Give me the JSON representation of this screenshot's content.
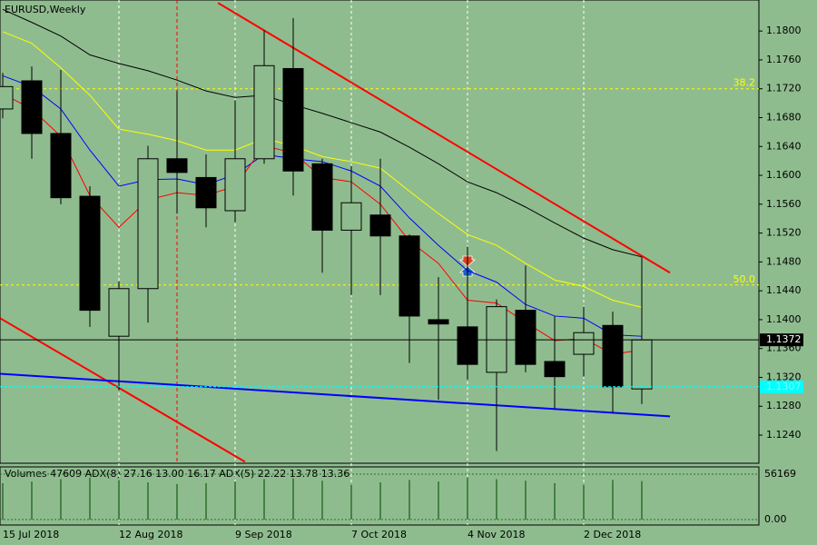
{
  "chart_data": {
    "type": "candlestick",
    "title": "EURUSD,Weekly",
    "categories": [
      "15 Jul 2018",
      null,
      null,
      null,
      "12 Aug 2018",
      null,
      null,
      null,
      "9 Sep 2018",
      null,
      null,
      null,
      "7 Oct 2018",
      null,
      null,
      null,
      "4 Nov 2018",
      null,
      null,
      null,
      "2 Dec 2018",
      null,
      null
    ],
    "open": [
      1.1692,
      1.1731,
      1.1658,
      1.1571,
      1.1377,
      1.1443,
      1.1623,
      1.1597,
      1.1551,
      1.1623,
      1.1748,
      1.1616,
      1.1524,
      1.1545,
      1.1516,
      1.14,
      1.139,
      1.1327,
      1.1413,
      1.1342,
      1.1352,
      1.1392,
      1.1304
    ],
    "high": [
      1.1742,
      1.1751,
      1.1746,
      1.1585,
      1.1453,
      1.1641,
      1.1717,
      1.1629,
      1.1704,
      1.1801,
      1.1818,
      1.1623,
      1.1613,
      1.1623,
      1.1518,
      1.1459,
      1.1501,
      1.1428,
      1.1475,
      1.1405,
      1.1418,
      1.1411,
      1.1487
    ],
    "low": [
      1.1679,
      1.1623,
      1.156,
      1.139,
      1.1302,
      1.1396,
      1.1547,
      1.1528,
      1.1535,
      1.1616,
      1.1572,
      1.1465,
      1.1434,
      1.1434,
      1.134,
      1.1289,
      1.1317,
      1.1218,
      1.1327,
      1.1277,
      1.1321,
      1.127,
      1.1283
    ],
    "close": [
      1.1723,
      1.1658,
      1.1569,
      1.1413,
      1.1443,
      1.1623,
      1.1604,
      1.1555,
      1.1623,
      1.1752,
      1.1606,
      1.1524,
      1.1562,
      1.1516,
      1.1405,
      1.1394,
      1.1338,
      1.1418,
      1.1338,
      1.1321,
      1.1382,
      1.1307,
      1.1372
    ],
    "bull_color": "#8fbc8f",
    "bear_color": "#000000",
    "series": [
      {
        "color": "#000000",
        "values": [
          1.183,
          1.1812,
          1.1793,
          1.1767,
          1.1755,
          1.1745,
          1.1732,
          1.1717,
          1.1708,
          1.1711,
          1.1698,
          1.1686,
          1.1673,
          1.166,
          1.1639,
          1.1616,
          1.1591,
          1.1576,
          1.1556,
          1.1534,
          1.1513,
          1.1497,
          1.1487
        ]
      },
      {
        "color": "#ffff00",
        "values": [
          1.1799,
          1.1783,
          1.1749,
          1.1711,
          1.1664,
          1.1657,
          1.1648,
          1.1635,
          1.1635,
          1.1651,
          1.1641,
          1.1626,
          1.1619,
          1.161,
          1.1578,
          1.1547,
          1.1518,
          1.1503,
          1.1478,
          1.1455,
          1.1446,
          1.1427,
          1.1417
        ]
      },
      {
        "color": "#0000ff",
        "values": [
          1.1738,
          1.1723,
          1.1692,
          1.1635,
          1.1585,
          1.1594,
          1.1595,
          1.1587,
          1.1601,
          1.1629,
          1.1623,
          1.1619,
          1.1606,
          1.1585,
          1.1541,
          1.1503,
          1.1468,
          1.1452,
          1.1421,
          1.1405,
          1.1402,
          1.1379,
          1.1377
        ]
      },
      {
        "color": "#ff0000",
        "values": [
          1.1713,
          1.1692,
          1.1654,
          1.1572,
          1.1528,
          1.1566,
          1.1576,
          1.1572,
          1.1585,
          1.1641,
          1.1631,
          1.1597,
          1.1591,
          1.156,
          1.1509,
          1.1478,
          1.1427,
          1.1423,
          1.1396,
          1.1371,
          1.1374,
          1.1352,
          1.1358
        ]
      }
    ],
    "trendlines": [
      {
        "color": "#ff0000",
        "x": [
          7.41,
          22.97
        ],
        "y": [
          1.1839,
          1.1465
        ]
      },
      {
        "color": "#ff0000",
        "x": [
          -0.09,
          8.34
        ],
        "y": [
          1.1402,
          1.1203
        ]
      },
      {
        "color": "#0000ff",
        "x": [
          -0.09,
          22.97
        ],
        "y": [
          1.1325,
          1.1266
        ]
      }
    ],
    "fib_levels": [
      {
        "name": "38.2",
        "value": 1.172
      },
      {
        "name": "50.0",
        "value": 1.1448
      }
    ],
    "fib_color": "#ffff00",
    "price_line": 1.1372,
    "ask_line": 1.1307,
    "ylim": [
      1.1201,
      1.1843
    ],
    "yticks": [
      {
        "value": 1.124,
        "label": "1.1240"
      },
      {
        "value": 1.128,
        "label": "1.1280"
      },
      {
        "value": 1.132,
        "label": "1.1320"
      },
      {
        "value": 1.136,
        "label": "1.1360"
      },
      {
        "value": 1.14,
        "label": "1.1400"
      },
      {
        "value": 1.144,
        "label": "1.1440"
      },
      {
        "value": 1.148,
        "label": "1.1480"
      },
      {
        "value": 1.152,
        "label": "1.1520"
      },
      {
        "value": 1.156,
        "label": "1.1560"
      },
      {
        "value": 1.16,
        "label": "1.1600"
      },
      {
        "value": 1.164,
        "label": "1.1640"
      },
      {
        "value": 1.168,
        "label": "1.1680"
      },
      {
        "value": 1.172,
        "label": "1.1720"
      },
      {
        "value": 1.176,
        "label": "1.1760"
      },
      {
        "value": 1.18,
        "label": "1.1800"
      }
    ],
    "volume_panel": {
      "title": "Volumes 47609 ADX(8) 27.16 13.00 16.17 ADX(5) 22.22 13.78 13.36",
      "color": "#2a6e2a",
      "values": [
        45000,
        47000,
        50000,
        52000,
        49000,
        46000,
        44000,
        45000,
        47000,
        50000,
        51000,
        48000,
        43000,
        46000,
        49000,
        47000,
        52000,
        50000,
        48000,
        45000,
        43000,
        49000,
        47609
      ],
      "ylim": [
        0,
        56169
      ],
      "yticks": [
        {
          "value": 56169,
          "label": "56169"
        },
        {
          "value": 0,
          "label": "0.00"
        }
      ]
    }
  }
}
